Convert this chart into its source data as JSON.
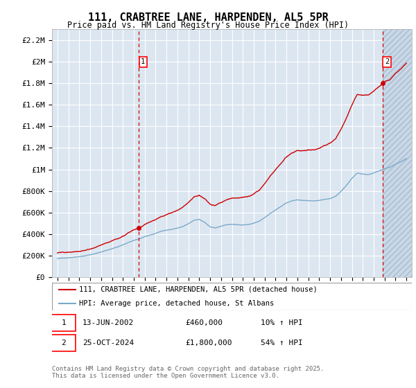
{
  "title": "111, CRABTREE LANE, HARPENDEN, AL5 5PR",
  "subtitle": "Price paid vs. HM Land Registry's House Price Index (HPI)",
  "ylim": [
    0,
    2300000
  ],
  "yticks": [
    0,
    200000,
    400000,
    600000,
    800000,
    1000000,
    1200000,
    1400000,
    1600000,
    1800000,
    2000000,
    2200000
  ],
  "ytick_labels": [
    "£0",
    "£200K",
    "£400K",
    "£600K",
    "£800K",
    "£1M",
    "£1.2M",
    "£1.4M",
    "£1.6M",
    "£1.8M",
    "£2M",
    "£2.2M"
  ],
  "xlim_start": 1994.5,
  "xlim_end": 2027.5,
  "xticks": [
    1995,
    1996,
    1997,
    1998,
    1999,
    2000,
    2001,
    2002,
    2003,
    2004,
    2005,
    2006,
    2007,
    2008,
    2009,
    2010,
    2011,
    2012,
    2013,
    2014,
    2015,
    2016,
    2017,
    2018,
    2019,
    2020,
    2021,
    2022,
    2023,
    2024,
    2025,
    2026,
    2027
  ],
  "plot_bg_color": "#dce6f1",
  "hatch_color": "#c8d8e8",
  "grid_color": "#ffffff",
  "line1_color": "#cc0000",
  "line2_color": "#7aaac8",
  "marker1_date": 2002.45,
  "marker1_price": 460000,
  "marker2_date": 2024.82,
  "marker2_price": 1800000,
  "hatch_start": 2024.82,
  "legend_line1": "111, CRABTREE LANE, HARPENDEN, AL5 5PR (detached house)",
  "legend_line2": "HPI: Average price, detached house, St Albans",
  "annotation1_date": "13-JUN-2002",
  "annotation1_price": "£460,000",
  "annotation1_hpi": "10% ↑ HPI",
  "annotation2_date": "25-OCT-2024",
  "annotation2_price": "£1,800,000",
  "annotation2_hpi": "54% ↑ HPI",
  "footer": "Contains HM Land Registry data © Crown copyright and database right 2025.\nThis data is licensed under the Open Government Licence v3.0."
}
